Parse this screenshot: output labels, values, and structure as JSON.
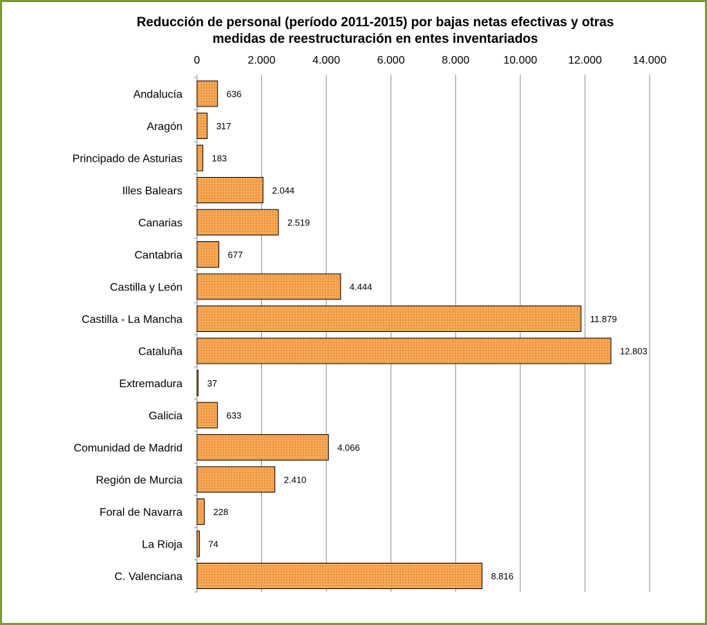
{
  "chart_data": {
    "type": "bar",
    "orientation": "horizontal",
    "title_line1": "Reducción de personal (período 2011-2015) por bajas netas efectivas y otras",
    "title_line2": "medidas de reestructuración en entes inventariados",
    "categories": [
      "Andalucía",
      "Aragón",
      "Principado de Asturias",
      "Illes Balears",
      "Canarias",
      "Cantabria",
      "Castilla y León",
      "Castilla - La Mancha",
      "Cataluña",
      "Extremadura",
      "Galicia",
      "Comunidad de Madrid",
      "Región de Murcia",
      "Foral de Navarra",
      "La Rioja",
      "C. Valenciana"
    ],
    "values": [
      636,
      317,
      183,
      2044,
      2519,
      677,
      4444,
      11879,
      12803,
      37,
      633,
      4066,
      2410,
      228,
      74,
      8816
    ],
    "value_labels": [
      "636",
      "317",
      "183",
      "2.044",
      "2.519",
      "677",
      "4.444",
      "11.879",
      "12.803",
      "37",
      "633",
      "4.066",
      "2.410",
      "228",
      "74",
      "8.816"
    ],
    "xlim": [
      0,
      14000
    ],
    "x_ticks": [
      0,
      2000,
      4000,
      6000,
      8000,
      10000,
      12000,
      14000
    ],
    "x_tick_labels": [
      "0",
      "2.000",
      "4.000",
      "6.000",
      "8.000",
      "10.000",
      "12.000",
      "14.000"
    ],
    "axis_position": "top",
    "grid": true,
    "legend": "none",
    "bar_color": "#f5a04a",
    "bar_border_color": "#000000",
    "grid_color": "#8c8c8c",
    "frame_color": "#7a9a3a"
  }
}
